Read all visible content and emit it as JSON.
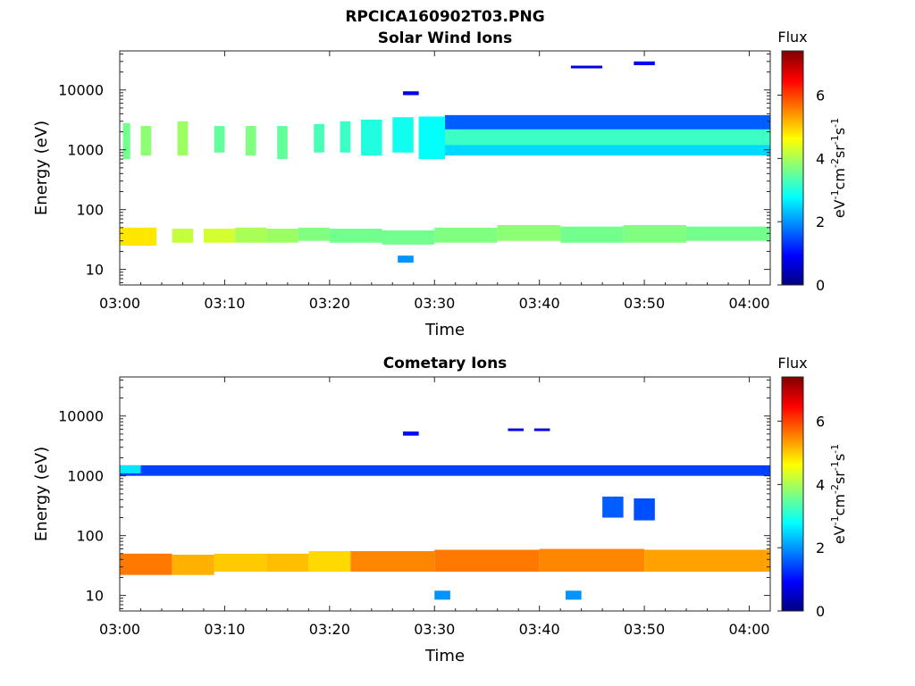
{
  "figure_title": "RPCICA160902T03.PNG",
  "chart_data": [
    {
      "type": "heatmap",
      "title": "Solar Wind Ions",
      "xlabel": "Time",
      "ylabel": "Energy (eV)",
      "x_ticks": [
        "03:00",
        "03:10",
        "03:20",
        "03:30",
        "03:40",
        "03:50",
        "04:00"
      ],
      "y_ticks": [
        "10",
        "100",
        "1000",
        "10000"
      ],
      "y_scale": "log",
      "xlim_minutes": [
        0,
        62
      ],
      "ylim": [
        5.5,
        45000
      ],
      "colorbar": {
        "title": "Flux",
        "label": "eV-1cm-2sr-1s-1",
        "range": [
          0,
          7.4
        ],
        "ticks": [
          "0",
          "2",
          "4",
          "6"
        ]
      },
      "blocks": [
        {
          "t": [
            0,
            3.5
          ],
          "e": [
            25,
            50
          ],
          "v": 4.8
        },
        {
          "t": [
            5,
            7
          ],
          "e": [
            28,
            48
          ],
          "v": 4.2
        },
        {
          "t": [
            8,
            11
          ],
          "e": [
            28,
            48
          ],
          "v": 4.3
        },
        {
          "t": [
            11,
            14
          ],
          "e": [
            28,
            50
          ],
          "v": 4.0
        },
        {
          "t": [
            14,
            17
          ],
          "e": [
            28,
            48
          ],
          "v": 3.9
        },
        {
          "t": [
            17,
            20
          ],
          "e": [
            30,
            50
          ],
          "v": 3.7
        },
        {
          "t": [
            20,
            25
          ],
          "e": [
            28,
            48
          ],
          "v": 3.6
        },
        {
          "t": [
            25,
            30
          ],
          "e": [
            26,
            45
          ],
          "v": 3.6
        },
        {
          "t": [
            30,
            36
          ],
          "e": [
            28,
            50
          ],
          "v": 3.7
        },
        {
          "t": [
            36,
            42
          ],
          "e": [
            30,
            55
          ],
          "v": 3.8
        },
        {
          "t": [
            42,
            48
          ],
          "e": [
            28,
            52
          ],
          "v": 3.6
        },
        {
          "t": [
            48,
            54
          ],
          "e": [
            28,
            55
          ],
          "v": 3.7
        },
        {
          "t": [
            54,
            62
          ],
          "e": [
            30,
            52
          ],
          "v": 3.6
        },
        {
          "t": [
            26.5,
            28
          ],
          "e": [
            13,
            17
          ],
          "v": 2.0
        },
        {
          "t": [
            0.3,
            1
          ],
          "e": [
            700,
            2800
          ],
          "v": 3.6
        },
        {
          "t": [
            2,
            3
          ],
          "e": [
            800,
            2500
          ],
          "v": 3.8
        },
        {
          "t": [
            5.5,
            6.5
          ],
          "e": [
            800,
            3000
          ],
          "v": 3.9
        },
        {
          "t": [
            9,
            10
          ],
          "e": [
            900,
            2500
          ],
          "v": 3.5
        },
        {
          "t": [
            12,
            13
          ],
          "e": [
            800,
            2500
          ],
          "v": 3.7
        },
        {
          "t": [
            15,
            16
          ],
          "e": [
            700,
            2500
          ],
          "v": 3.5
        },
        {
          "t": [
            18.5,
            19.5
          ],
          "e": [
            900,
            2700
          ],
          "v": 3.3
        },
        {
          "t": [
            21,
            22
          ],
          "e": [
            900,
            3000
          ],
          "v": 3.2
        },
        {
          "t": [
            23,
            25
          ],
          "e": [
            800,
            3200
          ],
          "v": 3.0
        },
        {
          "t": [
            26,
            28
          ],
          "e": [
            900,
            3500
          ],
          "v": 2.9
        },
        {
          "t": [
            28.5,
            31
          ],
          "e": [
            700,
            3600
          ],
          "v": 2.8
        },
        {
          "t": [
            31,
            62
          ],
          "e": [
            900,
            3800
          ],
          "v": 1.6
        },
        {
          "t": [
            31,
            62
          ],
          "e": [
            1100,
            2200
          ],
          "v": 3.2
        },
        {
          "t": [
            31,
            62
          ],
          "e": [
            800,
            1200
          ],
          "v": 2.5
        },
        {
          "t": [
            27,
            28.5
          ],
          "e": [
            8200,
            9500
          ],
          "v": 0.8
        },
        {
          "t": [
            43,
            46
          ],
          "e": [
            23000,
            25500
          ],
          "v": 0.7
        },
        {
          "t": [
            49,
            51
          ],
          "e": [
            26000,
            30000
          ],
          "v": 0.9
        }
      ]
    },
    {
      "type": "heatmap",
      "title": "Cometary Ions",
      "xlabel": "Time",
      "ylabel": "Energy (eV)",
      "x_ticks": [
        "03:00",
        "03:10",
        "03:20",
        "03:30",
        "03:40",
        "03:50",
        "04:00"
      ],
      "y_ticks": [
        "10",
        "100",
        "1000",
        "10000"
      ],
      "y_scale": "log",
      "xlim_minutes": [
        0,
        62
      ],
      "ylim": [
        5.5,
        45000
      ],
      "colorbar": {
        "title": "Flux",
        "label": "eV-1cm-2sr-1s-1",
        "range": [
          0,
          7.4
        ],
        "ticks": [
          "0",
          "2",
          "4",
          "6"
        ]
      },
      "blocks": [
        {
          "t": [
            0,
            5
          ],
          "e": [
            22,
            50
          ],
          "v": 5.6
        },
        {
          "t": [
            5,
            9
          ],
          "e": [
            22,
            48
          ],
          "v": 5.2
        },
        {
          "t": [
            9,
            14
          ],
          "e": [
            25,
            50
          ],
          "v": 5.0
        },
        {
          "t": [
            14,
            18
          ],
          "e": [
            25,
            50
          ],
          "v": 5.1
        },
        {
          "t": [
            18,
            22
          ],
          "e": [
            25,
            55
          ],
          "v": 4.9
        },
        {
          "t": [
            22,
            30
          ],
          "e": [
            25,
            55
          ],
          "v": 5.5
        },
        {
          "t": [
            30,
            40
          ],
          "e": [
            25,
            58
          ],
          "v": 5.6
        },
        {
          "t": [
            40,
            50
          ],
          "e": [
            25,
            60
          ],
          "v": 5.5
        },
        {
          "t": [
            50,
            62
          ],
          "e": [
            25,
            58
          ],
          "v": 5.3
        },
        {
          "t": [
            30,
            31.5
          ],
          "e": [
            8.5,
            12
          ],
          "v": 2.0
        },
        {
          "t": [
            42.5,
            44
          ],
          "e": [
            8.5,
            12
          ],
          "v": 2.0
        },
        {
          "t": [
            0,
            62
          ],
          "e": [
            1000,
            1500
          ],
          "v": 1.4
        },
        {
          "t": [
            0,
            2
          ],
          "e": [
            1100,
            1500
          ],
          "v": 2.6
        },
        {
          "t": [
            27,
            28.5
          ],
          "e": [
            4700,
            5500
          ],
          "v": 1.0
        },
        {
          "t": [
            37,
            38.5
          ],
          "e": [
            5600,
            6200
          ],
          "v": 0.8
        },
        {
          "t": [
            39.5,
            41
          ],
          "e": [
            5600,
            6200
          ],
          "v": 0.8
        },
        {
          "t": [
            46,
            48
          ],
          "e": [
            200,
            450
          ],
          "v": 1.6
        },
        {
          "t": [
            49,
            51
          ],
          "e": [
            180,
            420
          ],
          "v": 1.5
        }
      ]
    }
  ]
}
